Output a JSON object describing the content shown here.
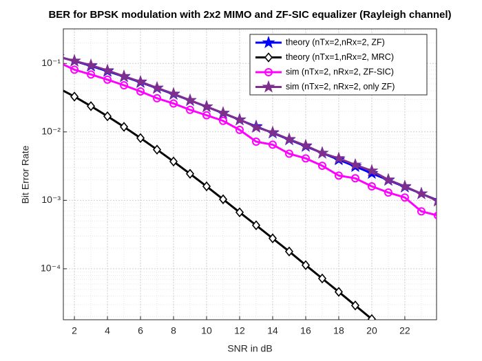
{
  "chart_data": {
    "type": "line",
    "title": "BER for BPSK modulation with 2x2 MIMO and ZF-SIC equalizer (Rayleigh channel)",
    "xlabel": "SNR in dB",
    "ylabel": "Bit Error Rate",
    "x": [
      1,
      2,
      3,
      4,
      5,
      6,
      7,
      8,
      9,
      10,
      11,
      12,
      13,
      14,
      15,
      16,
      17,
      18,
      19,
      20,
      21,
      22,
      23,
      24
    ],
    "xlim": [
      1.33,
      23.92
    ],
    "xticks": [
      2,
      4,
      6,
      8,
      10,
      12,
      14,
      16,
      18,
      20,
      22
    ],
    "ylim": [
      1.8e-05,
      0.32
    ],
    "log_y": true,
    "grid": true,
    "minor_grid": true,
    "legend": "upper right",
    "yticks": [
      {
        "value": 0.0001,
        "label": "10⁻⁴"
      },
      {
        "value": 0.001,
        "label": "10⁻³"
      },
      {
        "value": 0.01,
        "label": "10⁻²"
      },
      {
        "value": 0.1,
        "label": "10⁻¹"
      }
    ],
    "series": [
      {
        "name": "theory (nTx=2,nRx=2, ZF)",
        "color": "#0000ff",
        "marker": "star",
        "values": [
          0.1267,
          0.1085,
          0.0919,
          0.0771,
          0.0642,
          0.053,
          0.0435,
          0.0355,
          0.0288,
          0.0233,
          0.0187,
          0.015,
          0.012,
          0.00966,
          0.0077,
          0.00616,
          0.00491,
          0.00392,
          0.00312,
          0.00248,
          0.00197,
          0.00157,
          0.00125,
          0.001
        ]
      },
      {
        "name": "theory (nTx=1,nRx=2, MRC)",
        "color": "#000000",
        "marker": "diamond",
        "values": [
          0.0441,
          0.0328,
          0.0238,
          0.01692,
          0.01184,
          0.00813,
          0.00551,
          0.00369,
          0.00244,
          0.0016,
          0.001036,
          0.000668,
          0.000432,
          0.000278,
          0.000179,
          0.000113,
          7.21e-05,
          4.6e-05,
          2.91e-05,
          1.84e-05,
          null,
          null,
          null,
          null
        ]
      },
      {
        "name": "sim (nTx=2, nRx=2, ZF-SIC)",
        "color": "#ff00ff",
        "marker": "circle",
        "values": [
          0.105,
          0.081,
          0.069,
          0.058,
          0.048,
          0.039,
          0.031,
          0.026,
          0.021,
          0.0175,
          0.0145,
          0.0107,
          0.0072,
          0.0065,
          0.0048,
          0.0041,
          0.0032,
          0.0023,
          0.0021,
          0.0016,
          0.0013,
          0.0011,
          0.00069,
          0.0006
        ]
      },
      {
        "name": "sim (nTx=2, nRx=2, only ZF)",
        "color": "#7e2f8e",
        "marker": "star",
        "values": [
          0.125,
          0.109,
          0.094,
          0.079,
          0.065,
          0.054,
          0.044,
          0.036,
          0.029,
          0.0234,
          0.0189,
          0.0151,
          0.0117,
          0.0098,
          0.0078,
          0.0063,
          0.0049,
          0.0041,
          0.0033,
          0.0027,
          0.002,
          0.0016,
          0.00125,
          0.00098
        ]
      }
    ]
  }
}
